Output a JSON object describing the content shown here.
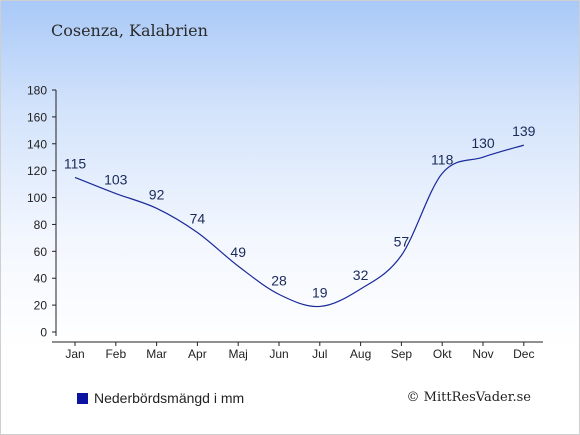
{
  "title": "Cosenza, Kalabrien",
  "legend": {
    "label": "Nederbördsmängd i mm",
    "color": "#0a14a0"
  },
  "copyright": "© MittResVader.se",
  "chart_data": {
    "type": "line",
    "categories": [
      "Jan",
      "Feb",
      "Mar",
      "Apr",
      "Maj",
      "Jun",
      "Jul",
      "Aug",
      "Sep",
      "Okt",
      "Nov",
      "Dec"
    ],
    "series": [
      {
        "name": "Nederbördsmängd i mm",
        "values": [
          115,
          103,
          92,
          74,
          49,
          28,
          19,
          32,
          57,
          118,
          130,
          139
        ],
        "color": "#1a2a9a"
      }
    ],
    "title": "Cosenza, Kalabrien",
    "xlabel": "",
    "ylabel": "",
    "ylim": [
      0,
      180
    ],
    "yticks": [
      0,
      20,
      40,
      60,
      80,
      100,
      120,
      140,
      160,
      180
    ],
    "grid": false,
    "legend_position": "bottom-left"
  }
}
